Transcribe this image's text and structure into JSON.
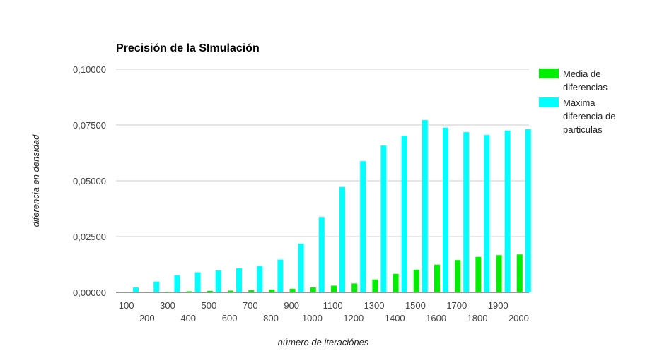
{
  "chart_data": {
    "type": "bar",
    "title": "Precisión de la SImulación",
    "xlabel": "número de iteraciónes",
    "ylabel": "diferencia en densidad",
    "categories": [
      "100",
      "200",
      "300",
      "400",
      "500",
      "600",
      "700",
      "800",
      "900",
      "1000",
      "1100",
      "1200",
      "1300",
      "1400",
      "1500",
      "1600",
      "1700",
      "1800",
      "1900",
      "2000"
    ],
    "series": [
      {
        "name": "Media de diferencias",
        "color": "#00ee00",
        "values": [
          0.0001,
          0.0002,
          0.0003,
          0.0005,
          0.0007,
          0.0008,
          0.001,
          0.0013,
          0.0016,
          0.0022,
          0.003,
          0.004,
          0.0058,
          0.0083,
          0.0102,
          0.0124,
          0.0145,
          0.0159,
          0.0167,
          0.017
        ]
      },
      {
        "name": "Máxima diferencia de particulas",
        "color": "#00ffff",
        "values": [
          0.0022,
          0.0048,
          0.0077,
          0.009,
          0.0098,
          0.0108,
          0.0118,
          0.0147,
          0.0218,
          0.0338,
          0.0472,
          0.0588,
          0.0658,
          0.0702,
          0.0772,
          0.0738,
          0.0718,
          0.0705,
          0.0725,
          0.0731
        ]
      }
    ],
    "ylim": [
      0,
      0.1
    ],
    "yticks": [
      0,
      0.025,
      0.05,
      0.075,
      0.1
    ],
    "ytick_labels": [
      "0,00000",
      "0,02500",
      "0,05000",
      "0,07500",
      "0,10000"
    ],
    "legend_lines": [
      [
        "Media de",
        "diferencias"
      ],
      [
        "Máxima",
        "diferencia de",
        "particulas"
      ]
    ],
    "grid": true,
    "legend_position": "right"
  }
}
